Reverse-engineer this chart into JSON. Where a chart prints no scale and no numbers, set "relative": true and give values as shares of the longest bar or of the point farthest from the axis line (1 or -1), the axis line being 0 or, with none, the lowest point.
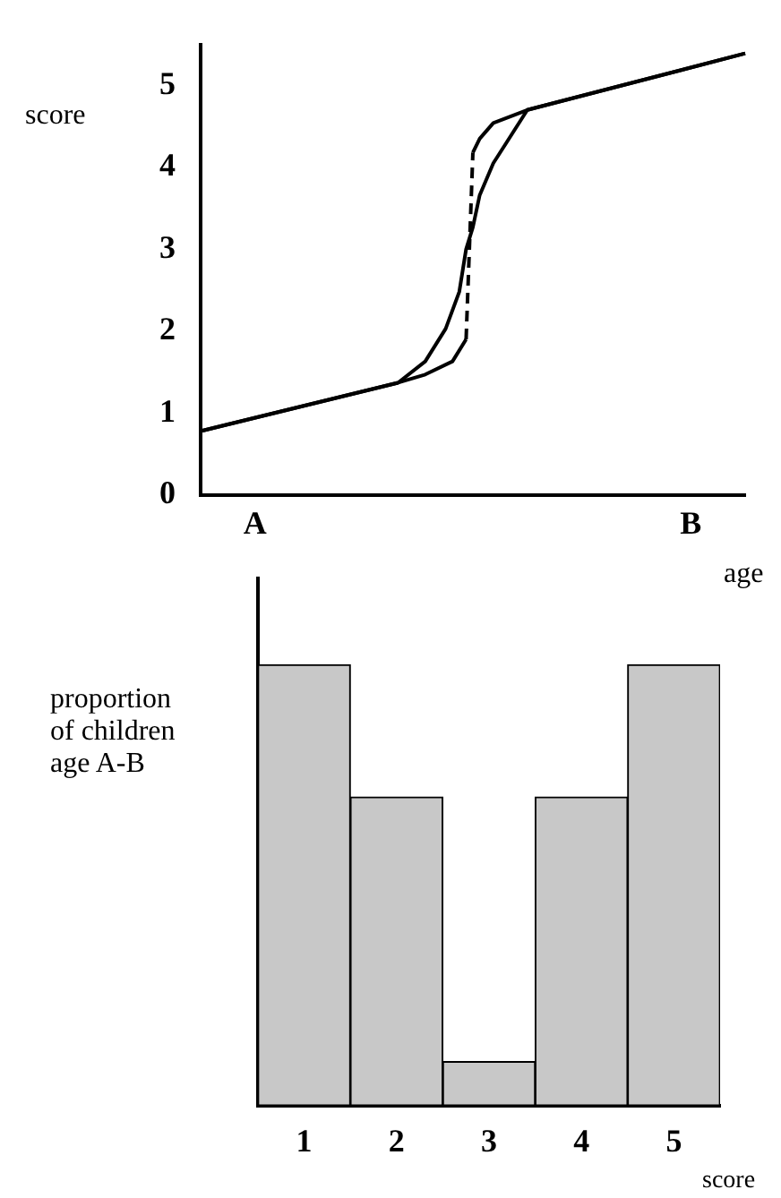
{
  "chart_data": [
    {
      "type": "line",
      "xlabel": "age",
      "ylabel": "score",
      "categories": [
        null,
        null,
        null,
        null,
        null,
        null,
        null,
        null,
        "A",
        null,
        null,
        null,
        null,
        null,
        null,
        null,
        null,
        null,
        null,
        null,
        null,
        null,
        null,
        null,
        null,
        null,
        null,
        null,
        null,
        null,
        null,
        null,
        null,
        null,
        null,
        null,
        null,
        null,
        null,
        null,
        null,
        null,
        null,
        null,
        null,
        null,
        null,
        null,
        null,
        null,
        null,
        null,
        null,
        null,
        null,
        null,
        null,
        null,
        null,
        null,
        null,
        null,
        null,
        null,
        null,
        null,
        null,
        null,
        null,
        null,
        null,
        null,
        "B",
        null,
        null,
        null,
        null,
        null,
        null,
        null,
        null
      ],
      "ylim": [
        0,
        5.5
      ],
      "yticks": [
        0,
        1,
        2,
        3,
        4,
        5
      ],
      "grid": false,
      "legend": false,
      "marker": "none",
      "series": [
        {
          "color": "#000000",
          "line_style": "solid",
          "values": [
            0.78,
            null,
            null,
            null,
            null,
            null,
            null,
            null,
            null,
            null,
            null,
            null,
            null,
            null,
            null,
            null,
            null,
            null,
            null,
            null,
            null,
            null,
            null,
            null,
            null,
            null,
            null,
            null,
            null,
            1.37,
            null,
            null,
            null,
            1.63,
            null,
            null,
            2.03,
            null,
            2.48,
            3.0,
            3.27,
            3.66,
            null,
            4.05,
            null,
            4.31,
            null,
            null,
            4.7,
            null,
            null,
            null,
            null,
            null,
            null,
            null,
            null,
            null,
            null,
            null,
            null,
            null,
            null,
            null,
            null,
            null,
            null,
            null,
            null,
            null,
            null,
            null,
            null,
            null,
            null,
            null,
            null,
            null,
            null,
            null,
            5.39
          ]
        },
        {
          "color": "#000000",
          "line_style": "solid",
          "values": [
            0.78,
            null,
            null,
            null,
            null,
            null,
            null,
            null,
            null,
            null,
            null,
            null,
            null,
            null,
            null,
            null,
            null,
            null,
            null,
            null,
            null,
            null,
            null,
            null,
            null,
            null,
            null,
            null,
            null,
            1.37,
            null,
            null,
            null,
            1.47,
            null,
            null,
            null,
            1.63,
            null,
            1.9,
            null,
            null,
            null,
            null,
            null,
            null,
            null,
            null,
            null,
            null,
            null,
            null,
            null,
            null,
            null,
            null,
            null,
            null,
            null,
            null,
            null,
            null,
            null,
            null,
            null,
            null,
            null,
            null,
            null,
            null,
            null,
            null,
            null,
            null,
            null,
            null,
            null,
            null,
            null,
            null,
            null
          ]
        },
        {
          "color": "#000000",
          "line_style": "dashed",
          "values": [
            null,
            null,
            null,
            null,
            null,
            null,
            null,
            null,
            null,
            null,
            null,
            null,
            null,
            null,
            null,
            null,
            null,
            null,
            null,
            null,
            null,
            null,
            null,
            null,
            null,
            null,
            null,
            null,
            null,
            null,
            null,
            null,
            null,
            null,
            null,
            null,
            null,
            null,
            null,
            1.9,
            4.18,
            null,
            null,
            null,
            null,
            null,
            null,
            null,
            null,
            null,
            null,
            null,
            null,
            null,
            null,
            null,
            null,
            null,
            null,
            null,
            null,
            null,
            null,
            null,
            null,
            null,
            null,
            null,
            null,
            null,
            null,
            null,
            null,
            null,
            null,
            null,
            null,
            null,
            null,
            null,
            null
          ]
        },
        {
          "color": "#000000",
          "line_style": "solid",
          "values": [
            null,
            null,
            null,
            null,
            null,
            null,
            null,
            null,
            null,
            null,
            null,
            null,
            null,
            null,
            null,
            null,
            null,
            null,
            null,
            null,
            null,
            null,
            null,
            null,
            null,
            null,
            null,
            null,
            null,
            null,
            null,
            null,
            null,
            null,
            null,
            null,
            null,
            null,
            null,
            null,
            4.18,
            4.35,
            null,
            4.54,
            null,
            null,
            null,
            null,
            4.7,
            null,
            null,
            null,
            null,
            null,
            null,
            null,
            null,
            null,
            null,
            null,
            null,
            null,
            null,
            null,
            null,
            null,
            null,
            null,
            null,
            null,
            null,
            null,
            null,
            null,
            null,
            null,
            null,
            null,
            null,
            null,
            5.39
          ]
        }
      ]
    },
    {
      "type": "bar",
      "xlabel": "score",
      "ylabel": "proportion of children age A-B",
      "categories": [
        "1",
        "2",
        "3",
        "4",
        "5"
      ],
      "values": [
        1,
        0.7,
        0.1,
        0.7,
        1
      ],
      "color": "#c8c8c8",
      "relative": true,
      "grid": false,
      "legend": false
    }
  ]
}
